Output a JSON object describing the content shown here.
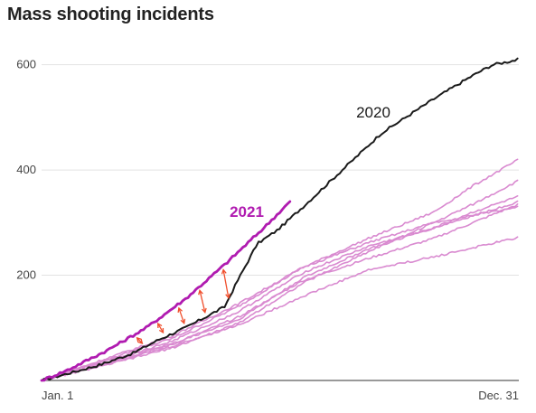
{
  "chart_data": {
    "type": "line",
    "title": "Mass shooting incidents",
    "xlabel": "",
    "ylabel": "",
    "x_ticks": [
      "Jan. 1",
      "Dec. 31"
    ],
    "y_ticks": [
      200,
      400,
      600
    ],
    "ylim": [
      0,
      620
    ],
    "x_domain": [
      0,
      365
    ],
    "grid": "horizontal",
    "annotation_arrow_days": [
      75,
      91,
      107,
      123,
      141
    ],
    "colors": {
      "highlight_2021": "#b01bb0",
      "highlight_2020": "#1a1a1a",
      "other_years": "#d98ad0",
      "arrows": "#f0502e",
      "grid": "#e2e2e2",
      "axis": "#333333"
    },
    "series": [
      {
        "name": "2020",
        "color": "#1a1a1a",
        "points": [
          [
            0,
            0
          ],
          [
            20,
            13
          ],
          [
            45,
            30
          ],
          [
            70,
            52
          ],
          [
            90,
            78
          ],
          [
            110,
            100
          ],
          [
            140,
            140
          ],
          [
            150,
            190
          ],
          [
            165,
            260
          ],
          [
            180,
            285
          ],
          [
            200,
            330
          ],
          [
            230,
            400
          ],
          [
            260,
            470
          ],
          [
            300,
            535
          ],
          [
            330,
            580
          ],
          [
            345,
            600
          ],
          [
            365,
            610
          ]
        ]
      },
      {
        "name": "2021",
        "color": "#b01bb0",
        "points": [
          [
            0,
            0
          ],
          [
            20,
            20
          ],
          [
            50,
            57
          ],
          [
            80,
            100
          ],
          [
            110,
            155
          ],
          [
            140,
            220
          ],
          [
            170,
            290
          ],
          [
            190,
            340
          ]
        ]
      },
      {
        "name": "",
        "color": "#d98ad0",
        "points": [
          [
            0,
            0
          ],
          [
            50,
            40
          ],
          [
            100,
            80
          ],
          [
            150,
            140
          ],
          [
            200,
            215
          ],
          [
            250,
            270
          ],
          [
            300,
            320
          ],
          [
            330,
            370
          ],
          [
            365,
            420
          ]
        ]
      },
      {
        "name": "",
        "color": "#d98ad0",
        "points": [
          [
            0,
            0
          ],
          [
            50,
            42
          ],
          [
            100,
            85
          ],
          [
            150,
            145
          ],
          [
            200,
            215
          ],
          [
            250,
            262
          ],
          [
            300,
            300
          ],
          [
            330,
            335
          ],
          [
            365,
            380
          ]
        ]
      },
      {
        "name": "",
        "color": "#d98ad0",
        "points": [
          [
            0,
            0
          ],
          [
            50,
            35
          ],
          [
            100,
            75
          ],
          [
            150,
            130
          ],
          [
            200,
            205
          ],
          [
            250,
            255
          ],
          [
            300,
            290
          ],
          [
            330,
            320
          ],
          [
            365,
            350
          ]
        ]
      },
      {
        "name": "",
        "color": "#d98ad0",
        "points": [
          [
            0,
            0
          ],
          [
            50,
            38
          ],
          [
            100,
            70
          ],
          [
            150,
            115
          ],
          [
            200,
            195
          ],
          [
            250,
            250
          ],
          [
            300,
            290
          ],
          [
            365,
            340
          ]
        ]
      },
      {
        "name": "",
        "color": "#d98ad0",
        "points": [
          [
            0,
            0
          ],
          [
            50,
            30
          ],
          [
            100,
            62
          ],
          [
            150,
            108
          ],
          [
            200,
            185
          ],
          [
            250,
            245
          ],
          [
            300,
            300
          ],
          [
            365,
            330
          ]
        ]
      },
      {
        "name": "",
        "color": "#d98ad0",
        "points": [
          [
            0,
            0
          ],
          [
            50,
            32
          ],
          [
            100,
            65
          ],
          [
            150,
            105
          ],
          [
            200,
            160
          ],
          [
            250,
            210
          ],
          [
            300,
            235
          ],
          [
            365,
            272
          ]
        ]
      },
      {
        "name": "",
        "color": "#d98ad0",
        "points": [
          [
            0,
            0
          ],
          [
            50,
            34
          ],
          [
            100,
            68
          ],
          [
            150,
            120
          ],
          [
            200,
            190
          ],
          [
            250,
            232
          ],
          [
            300,
            270
          ],
          [
            365,
            335
          ]
        ]
      }
    ]
  }
}
